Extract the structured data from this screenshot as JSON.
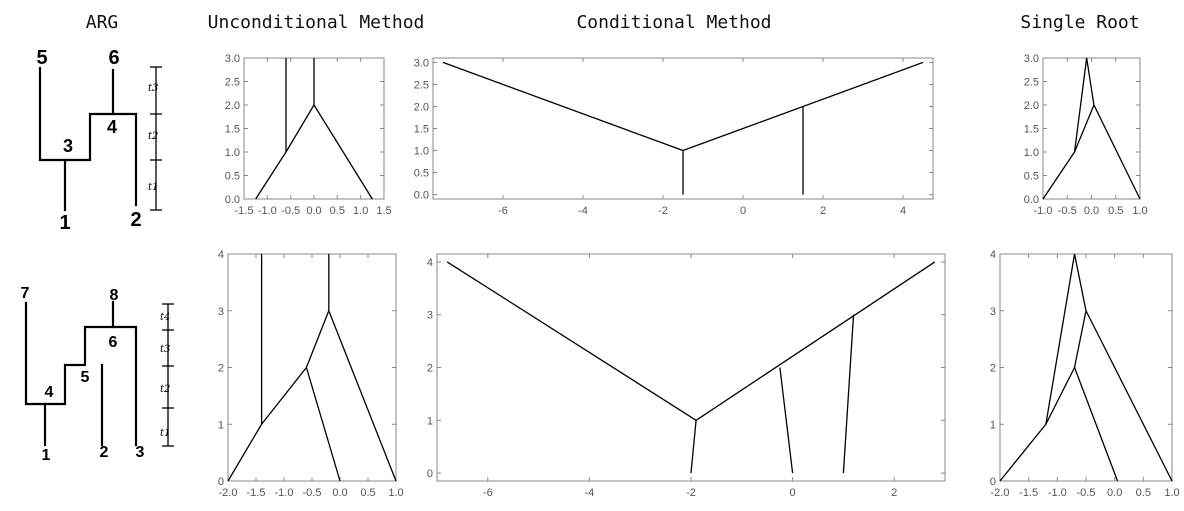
{
  "headers": {
    "arg": "ARG",
    "unconditional": "Unconditional Method",
    "conditional": "Conditional Method",
    "single_root": "Single Root"
  },
  "arg_top": {
    "labels": {
      "n1": "1",
      "n2": "2",
      "n3": "3",
      "n4": "4",
      "n5": "5",
      "n6": "6"
    },
    "time_labels": [
      "t3",
      "t2",
      "t1"
    ]
  },
  "arg_bottom": {
    "labels": {
      "n1": "1",
      "n2": "2",
      "n3": "3",
      "n4": "4",
      "n5": "5",
      "n6": "6",
      "n7": "7",
      "n8": "8"
    },
    "time_labels": [
      "t4",
      "t3",
      "t2",
      "t1"
    ]
  },
  "chart_data": [
    {
      "type": "line",
      "id": "top-unconditional",
      "xlim": [
        -1.5,
        1.5
      ],
      "ylim": [
        0,
        3
      ],
      "xticks": [
        "-1.5",
        "-1.0",
        "-0.5",
        "0.0",
        "0.5",
        "1.0",
        "1.5"
      ],
      "yticks": [
        "0.0",
        "0.5",
        "1.0",
        "1.5",
        "2.0",
        "2.5",
        "3.0"
      ],
      "segments": [
        [
          [
            -1.25,
            0
          ],
          [
            -0.6,
            1
          ]
        ],
        [
          [
            -0.6,
            1
          ],
          [
            0,
            2
          ]
        ],
        [
          [
            0,
            2
          ],
          [
            1.25,
            0
          ]
        ],
        [
          [
            -0.6,
            1
          ],
          [
            -0.6,
            3
          ]
        ],
        [
          [
            0,
            2
          ],
          [
            0,
            3
          ]
        ]
      ]
    },
    {
      "type": "line",
      "id": "top-conditional",
      "xlim": [
        -7.75,
        4.75
      ],
      "ylim": [
        -0.1,
        3.1
      ],
      "xticks": [
        "-6",
        "-4",
        "-2",
        "0",
        "2",
        "4"
      ],
      "yticks": [
        "0.0",
        "0.5",
        "1.0",
        "1.5",
        "2.0",
        "2.5",
        "3.0"
      ],
      "segments": [
        [
          [
            -7.5,
            3
          ],
          [
            -1.5,
            1
          ]
        ],
        [
          [
            -1.5,
            1
          ],
          [
            4.5,
            3
          ]
        ],
        [
          [
            -1.5,
            1
          ],
          [
            -1.5,
            0
          ]
        ],
        [
          [
            1.5,
            2
          ],
          [
            1.5,
            0
          ]
        ]
      ]
    },
    {
      "type": "line",
      "id": "top-single-root",
      "xlim": [
        -1,
        1
      ],
      "ylim": [
        0,
        3
      ],
      "xticks": [
        "-1.0",
        "-0.5",
        "0.0",
        "0.5",
        "1.0"
      ],
      "yticks": [
        "0.0",
        "0.5",
        "1.0",
        "1.5",
        "2.0",
        "2.5",
        "3.0"
      ],
      "segments": [
        [
          [
            -1,
            0
          ],
          [
            -0.35,
            1
          ]
        ],
        [
          [
            -0.35,
            1
          ],
          [
            -0.1,
            3
          ]
        ],
        [
          [
            -0.1,
            3
          ],
          [
            0.05,
            2
          ]
        ],
        [
          [
            -0.35,
            1
          ],
          [
            0.05,
            2
          ]
        ],
        [
          [
            0.05,
            2
          ],
          [
            1,
            0
          ]
        ]
      ]
    },
    {
      "type": "line",
      "id": "bottom-unconditional",
      "xlim": [
        -2,
        1
      ],
      "ylim": [
        0,
        4
      ],
      "xticks": [
        "-2.0",
        "-1.5",
        "-1.0",
        "-0.5",
        "0.0",
        "0.5",
        "1.0"
      ],
      "yticks": [
        "0",
        "1",
        "2",
        "3",
        "4"
      ],
      "segments": [
        [
          [
            -2,
            0
          ],
          [
            -1.4,
            1
          ]
        ],
        [
          [
            -1.4,
            1
          ],
          [
            -0.6,
            2
          ]
        ],
        [
          [
            -0.6,
            2
          ],
          [
            0,
            0
          ]
        ],
        [
          [
            -0.6,
            2
          ],
          [
            -0.2,
            3
          ]
        ],
        [
          [
            -0.2,
            3
          ],
          [
            1,
            0
          ]
        ],
        [
          [
            -1.4,
            1
          ],
          [
            -1.4,
            4
          ]
        ],
        [
          [
            -0.2,
            3
          ],
          [
            -0.2,
            4
          ]
        ]
      ]
    },
    {
      "type": "line",
      "id": "bottom-conditional",
      "xlim": [
        -7,
        3
      ],
      "ylim": [
        -0.15,
        4.15
      ],
      "xticks": [
        "-6",
        "-4",
        "-2",
        "0",
        "2"
      ],
      "yticks": [
        "0",
        "1",
        "2",
        "3",
        "4"
      ],
      "segments": [
        [
          [
            -6.8,
            4
          ],
          [
            -1.9,
            1
          ]
        ],
        [
          [
            -1.9,
            1
          ],
          [
            2.8,
            4
          ]
        ],
        [
          [
            -1.9,
            1
          ],
          [
            -2,
            0
          ]
        ],
        [
          [
            -0.25,
            2
          ],
          [
            0,
            0
          ]
        ],
        [
          [
            1.2,
            3
          ],
          [
            1,
            0
          ]
        ]
      ]
    },
    {
      "type": "line",
      "id": "bottom-single-root",
      "xlim": [
        -2,
        1
      ],
      "ylim": [
        0,
        4
      ],
      "xticks": [
        "-2.0",
        "-1.5",
        "-1.0",
        "-0.5",
        "0.0",
        "0.5",
        "1.0"
      ],
      "yticks": [
        "0",
        "1",
        "2",
        "3",
        "4"
      ],
      "segments": [
        [
          [
            -2,
            0
          ],
          [
            -1.2,
            1
          ]
        ],
        [
          [
            -1.2,
            1
          ],
          [
            -0.7,
            2
          ]
        ],
        [
          [
            -0.7,
            2
          ],
          [
            0.05,
            0
          ]
        ],
        [
          [
            -1.2,
            1
          ],
          [
            -0.7,
            4
          ]
        ],
        [
          [
            -0.7,
            4
          ],
          [
            -0.5,
            3
          ]
        ],
        [
          [
            -0.7,
            2
          ],
          [
            -0.5,
            3
          ]
        ],
        [
          [
            -0.5,
            3
          ],
          [
            1,
            0
          ]
        ]
      ]
    }
  ]
}
